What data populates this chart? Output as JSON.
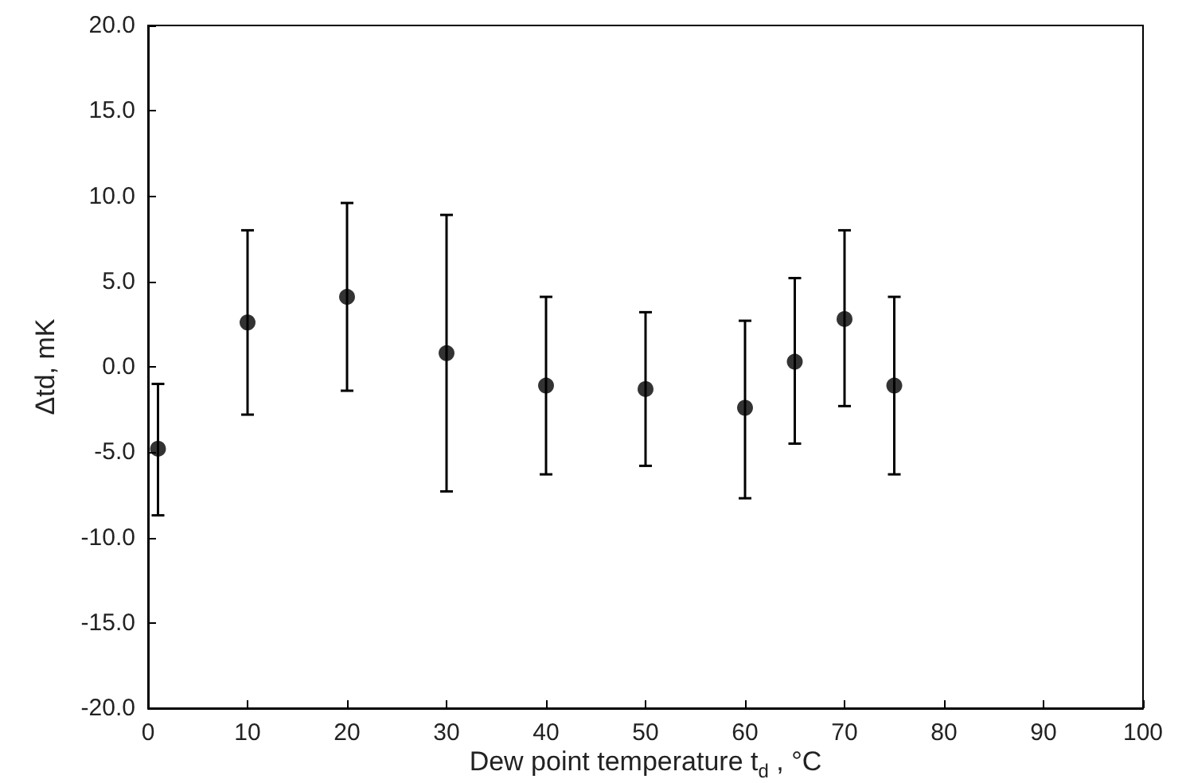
{
  "chart_data": {
    "type": "scatter",
    "xlabel": "Dew point temperature t$_{d}$ , °C",
    "ylabel": "Δtd, mK",
    "x": [
      1,
      10,
      20,
      30,
      40,
      50,
      60,
      65,
      70,
      75
    ],
    "values": [
      -4.8,
      2.6,
      4.1,
      0.8,
      -1.1,
      -1.3,
      -2.4,
      0.3,
      2.8,
      -1.1
    ],
    "errors": [
      [
        -8.7,
        -1.0
      ],
      [
        -2.8,
        8.0
      ],
      [
        -1.4,
        9.6
      ],
      [
        -7.3,
        8.9
      ],
      [
        -6.3,
        4.1
      ],
      [
        -5.8,
        3.2
      ],
      [
        -7.7,
        2.7
      ],
      [
        -4.5,
        5.2
      ],
      [
        -2.3,
        8.0
      ],
      [
        -6.3,
        4.1
      ]
    ],
    "color": "#000000",
    "marker": "circle",
    "grid": false,
    "xlim": [
      0,
      100
    ],
    "xticks": [
      0,
      10,
      20,
      30,
      40,
      50,
      60,
      70,
      80,
      90,
      100
    ],
    "ylim": [
      -20,
      20
    ],
    "yticks": [
      {
        "value": -20,
        "label": "-20.0"
      },
      {
        "value": -15,
        "label": "-15.0"
      },
      {
        "value": -10,
        "label": "-10.0"
      },
      {
        "value": -5,
        "label": "-5.0"
      },
      {
        "value": 0,
        "label": "0.0"
      },
      {
        "value": 5,
        "label": "5.0"
      },
      {
        "value": 10,
        "label": "10.0"
      },
      {
        "value": 15,
        "label": "15.0"
      },
      {
        "value": 20,
        "label": "20.0"
      }
    ]
  }
}
